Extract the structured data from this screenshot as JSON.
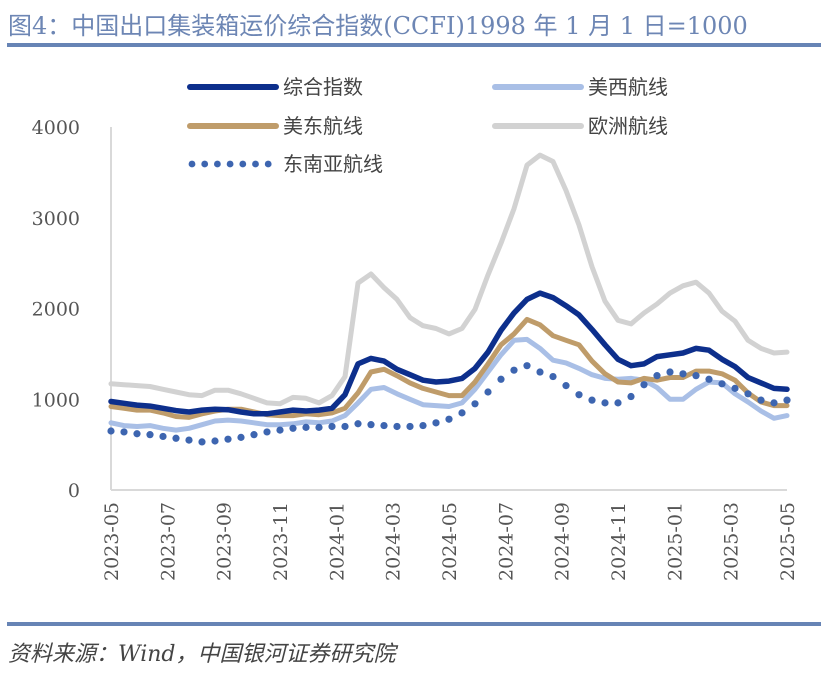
{
  "title": "图4：中国出口集装箱运价综合指数(CCFI)1998 年 1 月 1 日=1000",
  "source": "资料来源：Wind，中国银河证券研究院",
  "colors": {
    "title": "#6d86b4",
    "rule": "#6784b5",
    "composite": "#0d2f8c",
    "us_west": "#a9bfe6",
    "us_east": "#bf9c6a",
    "europe": "#d2d2d2",
    "southeast_asia": "#3d65b0"
  },
  "chart_data": {
    "type": "line",
    "title": "中国出口集装箱运价综合指数(CCFI)",
    "xlabel": "",
    "ylabel": "",
    "ylim": [
      0,
      4000
    ],
    "yticks": [
      0,
      1000,
      2000,
      3000,
      4000
    ],
    "xticks": [
      "2023-05",
      "2023-07",
      "2023-09",
      "2023-11",
      "2024-01",
      "2024-03",
      "2024-05",
      "2024-07",
      "2024-09",
      "2024-11",
      "2025-01",
      "2025-03",
      "2025-05"
    ],
    "grid": false,
    "legend_position": "top",
    "x_count": 53,
    "series": [
      {
        "key": "composite",
        "name": "综合指数",
        "style": "solid",
        "values": [
          975,
          955,
          935,
          925,
          900,
          875,
          860,
          880,
          890,
          885,
          860,
          840,
          840,
          860,
          880,
          870,
          880,
          900,
          1050,
          1390,
          1450,
          1420,
          1330,
          1270,
          1210,
          1190,
          1200,
          1230,
          1340,
          1520,
          1760,
          1950,
          2100,
          2170,
          2120,
          2030,
          1930,
          1770,
          1600,
          1440,
          1370,
          1390,
          1470,
          1490,
          1510,
          1560,
          1540,
          1440,
          1360,
          1240,
          1180,
          1120,
          1110
        ]
      },
      {
        "key": "us_west",
        "name": "美西航线",
        "style": "solid",
        "values": [
          740,
          710,
          700,
          710,
          680,
          660,
          680,
          720,
          760,
          770,
          760,
          740,
          720,
          720,
          730,
          750,
          740,
          760,
          820,
          960,
          1110,
          1130,
          1060,
          1000,
          940,
          930,
          920,
          960,
          1110,
          1300,
          1490,
          1650,
          1660,
          1560,
          1430,
          1400,
          1340,
          1270,
          1230,
          1220,
          1230,
          1210,
          1130,
          1000,
          1000,
          1110,
          1190,
          1180,
          1060,
          970,
          870,
          790,
          820
        ]
      },
      {
        "key": "us_east",
        "name": "美东航线",
        "style": "solid",
        "values": [
          920,
          900,
          880,
          880,
          850,
          810,
          800,
          840,
          870,
          890,
          890,
          860,
          830,
          820,
          820,
          840,
          830,
          850,
          900,
          1070,
          1300,
          1330,
          1260,
          1180,
          1120,
          1080,
          1040,
          1040,
          1190,
          1390,
          1600,
          1720,
          1880,
          1820,
          1700,
          1650,
          1600,
          1420,
          1280,
          1190,
          1180,
          1230,
          1210,
          1240,
          1240,
          1310,
          1310,
          1280,
          1210,
          1070,
          970,
          930,
          930
        ]
      },
      {
        "key": "europe",
        "name": "欧洲航线",
        "style": "solid",
        "values": [
          1170,
          1160,
          1150,
          1140,
          1110,
          1080,
          1050,
          1040,
          1100,
          1100,
          1060,
          1010,
          960,
          950,
          1020,
          1010,
          960,
          1040,
          1250,
          2280,
          2380,
          2230,
          2100,
          1900,
          1810,
          1780,
          1720,
          1780,
          1990,
          2370,
          2720,
          3100,
          3580,
          3690,
          3620,
          3300,
          2920,
          2460,
          2080,
          1870,
          1830,
          1950,
          2050,
          2170,
          2250,
          2290,
          2170,
          1970,
          1860,
          1650,
          1560,
          1510,
          1520
        ]
      },
      {
        "key": "southeast_asia",
        "name": "东南亚航线",
        "style": "dotted",
        "values": [
          650,
          640,
          620,
          610,
          590,
          570,
          550,
          530,
          540,
          560,
          580,
          610,
          640,
          660,
          680,
          690,
          690,
          700,
          700,
          730,
          720,
          710,
          700,
          700,
          710,
          740,
          780,
          850,
          950,
          1080,
          1220,
          1320,
          1370,
          1300,
          1250,
          1150,
          1050,
          990,
          960,
          960,
          1030,
          1160,
          1260,
          1300,
          1280,
          1260,
          1220,
          1170,
          1120,
          1060,
          990,
          960,
          990
        ]
      }
    ]
  }
}
